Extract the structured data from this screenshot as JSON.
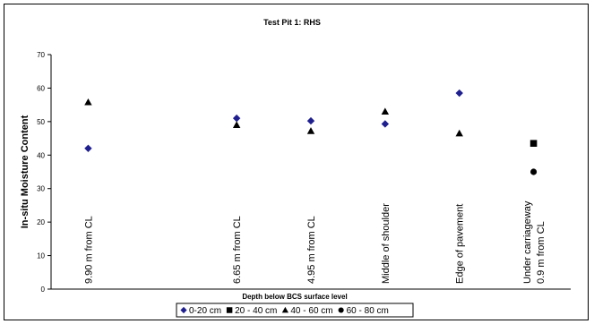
{
  "chart_data": {
    "type": "scatter",
    "title": "Test Pit 1: RHS",
    "xlabel": "Depth below BCS surface level",
    "ylabel": "In-situ Moisture Content",
    "ylim": [
      0,
      70
    ],
    "yticks": [
      0,
      10,
      20,
      30,
      40,
      50,
      60,
      70
    ],
    "grid": false,
    "legend_position": "bottom",
    "categories": [
      "9.90 m from CL",
      "",
      "6.65  m from CL",
      "4.95 m from CL",
      "Middle of shoulder",
      "Edge of pavement",
      "Under carriageway\n0.9 m from CL"
    ],
    "series": [
      {
        "name": "0-20 cm",
        "marker": "diamond",
        "color": "#1f1f8f",
        "values": [
          42,
          null,
          51,
          50.2,
          49.3,
          58.5,
          null
        ]
      },
      {
        "name": "20 - 40 cm",
        "marker": "square",
        "color": "#000000",
        "values": [
          null,
          null,
          null,
          null,
          null,
          null,
          43.5
        ]
      },
      {
        "name": "40 - 60 cm",
        "marker": "triangle",
        "color": "#000000",
        "values": [
          55.8,
          null,
          49,
          47.2,
          53,
          46.5,
          null
        ]
      },
      {
        "name": "60 - 80 cm",
        "marker": "circle",
        "color": "#000000",
        "values": [
          null,
          null,
          null,
          null,
          null,
          null,
          35
        ]
      }
    ]
  }
}
